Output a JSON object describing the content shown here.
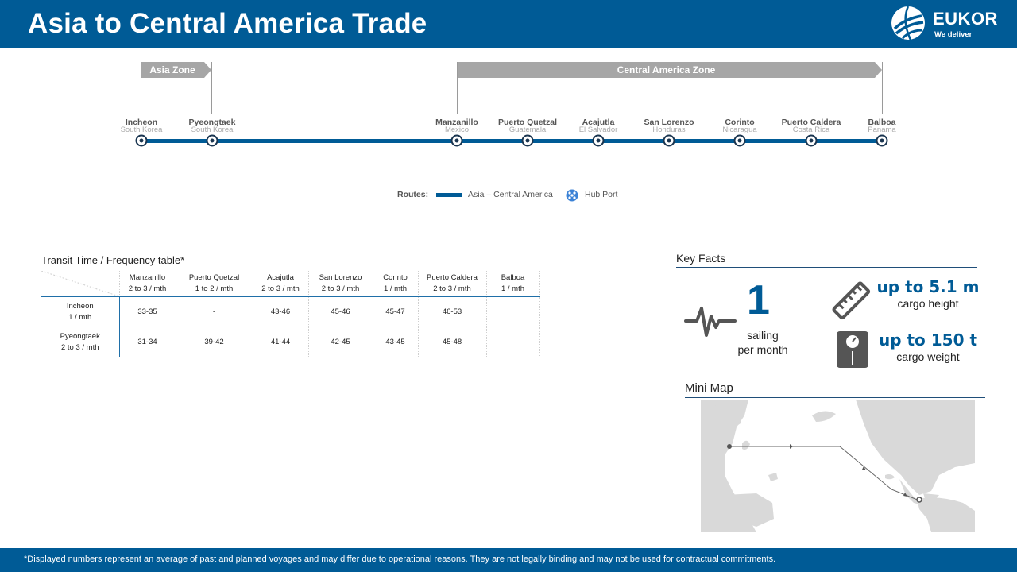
{
  "header": {
    "title": "Asia to Central America Trade",
    "logo_name": "EUKOR",
    "logo_tagline": "We deliver"
  },
  "zones": {
    "asia": "Asia Zone",
    "central_america": "Central America Zone"
  },
  "ports": [
    {
      "name": "Incheon",
      "country": "South Korea"
    },
    {
      "name": "Pyeongtaek",
      "country": "South Korea"
    },
    {
      "name": "Manzanillo",
      "country": "Mexico"
    },
    {
      "name": "Puerto Quetzal",
      "country": "Guatemala"
    },
    {
      "name": "Acajutla",
      "country": "El Salvador"
    },
    {
      "name": "San Lorenzo",
      "country": "Honduras"
    },
    {
      "name": "Corinto",
      "country": "Nicaragua"
    },
    {
      "name": "Puerto Caldera",
      "country": "Costa Rica"
    },
    {
      "name": "Balboa",
      "country": "Panama"
    }
  ],
  "legend": {
    "label": "Routes:",
    "route": "Asia – Central America",
    "hub": "Hub Port"
  },
  "transit_table": {
    "title": "Transit Time / Frequency table*",
    "columns": [
      {
        "port": "Manzanillo",
        "freq": "2 to 3 / mth"
      },
      {
        "port": "Puerto Quetzal",
        "freq": "1 to 2 / mth"
      },
      {
        "port": "Acajutla",
        "freq": "2 to 3 / mth"
      },
      {
        "port": "San Lorenzo",
        "freq": "2 to 3 / mth"
      },
      {
        "port": "Corinto",
        "freq": "1 / mth"
      },
      {
        "port": "Puerto Caldera",
        "freq": "2 to 3 / mth"
      },
      {
        "port": "Balboa",
        "freq": "1 / mth"
      }
    ],
    "rows": [
      {
        "port": "Incheon",
        "freq": "1 / mth",
        "values": [
          "33-35",
          "-",
          "43-46",
          "45-46",
          "45-47",
          "46-53",
          ""
        ]
      },
      {
        "port": "Pyeongtaek",
        "freq": "2 to 3 / mth",
        "values": [
          "31-34",
          "39-42",
          "41-44",
          "42-45",
          "43-45",
          "45-48",
          ""
        ]
      }
    ]
  },
  "key_facts": {
    "title": "Key Facts",
    "sailings_value": "1",
    "sailings_label_1": "sailing",
    "sailings_label_2": "per month",
    "height_value": "up to 5.1 m",
    "height_label": "cargo height",
    "weight_value": "up to 150 t",
    "weight_label": "cargo weight"
  },
  "mini_map": {
    "title": "Mini Map"
  },
  "footer": {
    "note": "*Displayed numbers represent  an average of past and planned voyages and may differ due to operational reasons. They are not legally binding and may not be used for contractual commitments."
  },
  "colors": {
    "brand_blue": "#005b96",
    "zone_gray": "#a6a6a6",
    "land_gray": "#d9d9d9"
  }
}
